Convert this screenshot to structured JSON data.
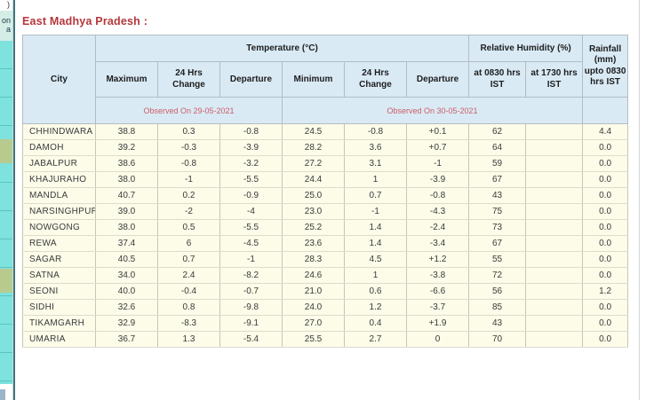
{
  "page": {
    "title": "East Madhya Pradesh :"
  },
  "sidebar": {
    "fragments": [
      ")",
      "on",
      "a"
    ]
  },
  "colors": {
    "title_red": "#b5373c",
    "observed_red": "#cf5d64",
    "header_bg": "#d9eaf5",
    "row_bg": "#fcfce9",
    "sidebar_cyan": "#7ee2dd",
    "sidebar_olive": "#b7cb8f",
    "sidebar_edge": "#46717a"
  },
  "table": {
    "group_headers": {
      "temperature": "Temperature (°C)",
      "humidity": "Relative Humidity (%)",
      "rainfall": "Rainfall (mm) upto 0830 hrs IST"
    },
    "columns": {
      "city": "City",
      "maximum": "Maximum",
      "max_change": "24 Hrs Change",
      "max_departure": "Departure",
      "minimum": "Minimum",
      "min_change": "24 Hrs Change",
      "min_departure": "Departure",
      "rh_0830": "at 0830 hrs IST",
      "rh_1730": "at 1730 hrs IST"
    },
    "observed_notes": {
      "max_side": "Observed On  29-05-2021",
      "min_side": "Observed On  30-05-2021"
    },
    "rows": [
      [
        "CHHINDWARA",
        "38.8",
        "0.3",
        "-0.8",
        "24.5",
        "-0.8",
        "+0.1",
        "62",
        "",
        "4.4"
      ],
      [
        "DAMOH",
        "39.2",
        "-0.3",
        "-3.9",
        "28.2",
        "3.6",
        "+0.7",
        "64",
        "",
        "0.0"
      ],
      [
        "JABALPUR",
        "38.6",
        "-0.8",
        "-3.2",
        "27.2",
        "3.1",
        "-1",
        "59",
        "",
        "0.0"
      ],
      [
        "KHAJURAHO",
        "38.0",
        "-1",
        "-5.5",
        "24.4",
        "1",
        "-3.9",
        "67",
        "",
        "0.0"
      ],
      [
        "MANDLA",
        "40.7",
        "0.2",
        "-0.9",
        "25.0",
        "0.7",
        "-0.8",
        "43",
        "",
        "0.0"
      ],
      [
        "NARSINGHPUR",
        "39.0",
        "-2",
        "-4",
        "23.0",
        "-1",
        "-4.3",
        "75",
        "",
        "0.0"
      ],
      [
        "NOWGONG",
        "38.0",
        "0.5",
        "-5.5",
        "25.2",
        "1.4",
        "-2.4",
        "73",
        "",
        "0.0"
      ],
      [
        "REWA",
        "37.4",
        "6",
        "-4.5",
        "23.6",
        "1.4",
        "-3.4",
        "67",
        "",
        "0.0"
      ],
      [
        "SAGAR",
        "40.5",
        "0.7",
        "-1",
        "28.3",
        "4.5",
        "+1.2",
        "55",
        "",
        "0.0"
      ],
      [
        "SATNA",
        "34.0",
        "2.4",
        "-8.2",
        "24.6",
        "1",
        "-3.8",
        "72",
        "",
        "0.0"
      ],
      [
        "SEONI",
        "40.0",
        "-0.4",
        "-0.7",
        "21.0",
        "0.6",
        "-6.6",
        "56",
        "",
        "1.2"
      ],
      [
        "SIDHI",
        "32.6",
        "0.8",
        "-9.8",
        "24.0",
        "1.2",
        "-3.7",
        "85",
        "",
        "0.0"
      ],
      [
        "TIKAMGARH",
        "32.9",
        "-8.3",
        "-9.1",
        "27.0",
        "0.4",
        "+1.9",
        "43",
        "",
        "0.0"
      ],
      [
        "UMARIA",
        "36.7",
        "1.3",
        "-5.4",
        "25.5",
        "2.7",
        "0",
        "70",
        "",
        "0.0"
      ]
    ]
  }
}
